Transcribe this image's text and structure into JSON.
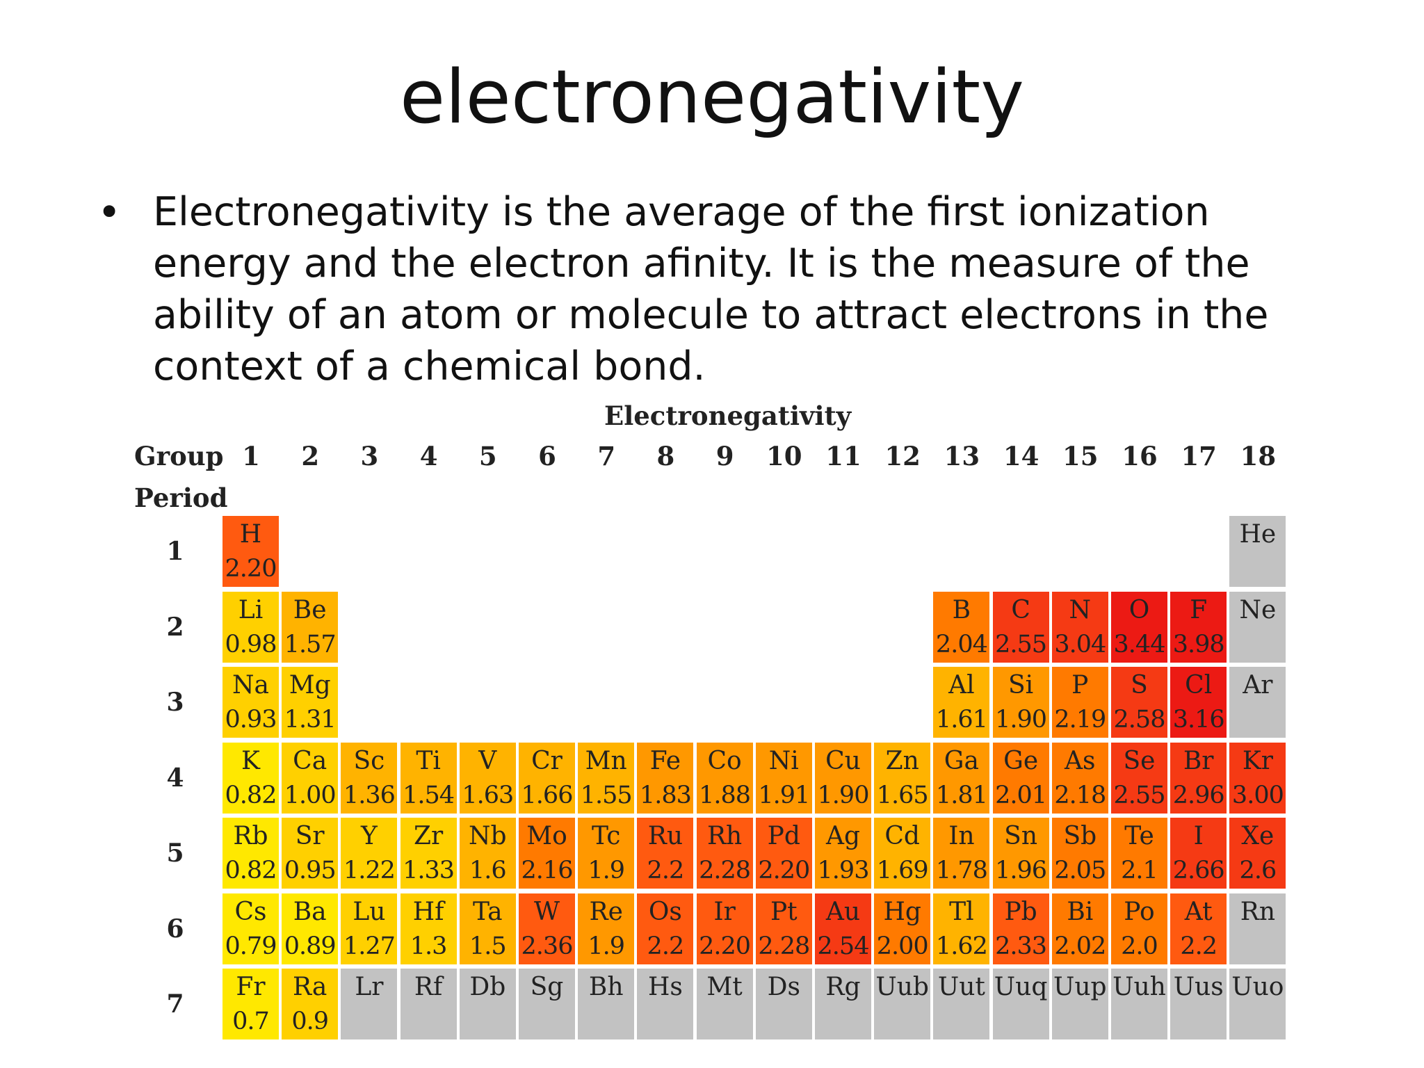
{
  "slide": {
    "title": "electronegativity",
    "bullet": "Electronegativity is the average of the first ionization energy and the electron afinity. It is the measure of the ability of an atom or molecule to attract electrons in the context of a chemical bond."
  },
  "table": {
    "caption": "Electronegativity",
    "group_label": "Group",
    "period_label": "Period",
    "groups": [
      "1",
      "2",
      "3",
      "4",
      "5",
      "6",
      "7",
      "8",
      "9",
      "10",
      "11",
      "12",
      "13",
      "14",
      "15",
      "16",
      "17",
      "18"
    ],
    "periods": [
      "1",
      "2",
      "3",
      "4",
      "5",
      "6",
      "7"
    ],
    "colors": {
      "none": "#c2c2c2",
      "scale": [
        "#ffe800",
        "#ffd000",
        "#ffb300",
        "#ff9800",
        "#ff7a00",
        "#ff5a10",
        "#f53a14",
        "#ec1a14"
      ]
    },
    "elements": [
      {
        "sym": "H",
        "en": "2.20",
        "p": 1,
        "g": 1
      },
      {
        "sym": "He",
        "en": "",
        "p": 1,
        "g": 18
      },
      {
        "sym": "Li",
        "en": "0.98",
        "p": 2,
        "g": 1
      },
      {
        "sym": "Be",
        "en": "1.57",
        "p": 2,
        "g": 2
      },
      {
        "sym": "B",
        "en": "2.04",
        "p": 2,
        "g": 13
      },
      {
        "sym": "C",
        "en": "2.55",
        "p": 2,
        "g": 14
      },
      {
        "sym": "N",
        "en": "3.04",
        "p": 2,
        "g": 15
      },
      {
        "sym": "O",
        "en": "3.44",
        "p": 2,
        "g": 16
      },
      {
        "sym": "F",
        "en": "3.98",
        "p": 2,
        "g": 17
      },
      {
        "sym": "Ne",
        "en": "",
        "p": 2,
        "g": 18
      },
      {
        "sym": "Na",
        "en": "0.93",
        "p": 3,
        "g": 1
      },
      {
        "sym": "Mg",
        "en": "1.31",
        "p": 3,
        "g": 2
      },
      {
        "sym": "Al",
        "en": "1.61",
        "p": 3,
        "g": 13
      },
      {
        "sym": "Si",
        "en": "1.90",
        "p": 3,
        "g": 14
      },
      {
        "sym": "P",
        "en": "2.19",
        "p": 3,
        "g": 15
      },
      {
        "sym": "S",
        "en": "2.58",
        "p": 3,
        "g": 16
      },
      {
        "sym": "Cl",
        "en": "3.16",
        "p": 3,
        "g": 17
      },
      {
        "sym": "Ar",
        "en": "",
        "p": 3,
        "g": 18
      },
      {
        "sym": "K",
        "en": "0.82",
        "p": 4,
        "g": 1
      },
      {
        "sym": "Ca",
        "en": "1.00",
        "p": 4,
        "g": 2
      },
      {
        "sym": "Sc",
        "en": "1.36",
        "p": 4,
        "g": 3
      },
      {
        "sym": "Ti",
        "en": "1.54",
        "p": 4,
        "g": 4
      },
      {
        "sym": "V",
        "en": "1.63",
        "p": 4,
        "g": 5
      },
      {
        "sym": "Cr",
        "en": "1.66",
        "p": 4,
        "g": 6
      },
      {
        "sym": "Mn",
        "en": "1.55",
        "p": 4,
        "g": 7
      },
      {
        "sym": "Fe",
        "en": "1.83",
        "p": 4,
        "g": 8
      },
      {
        "sym": "Co",
        "en": "1.88",
        "p": 4,
        "g": 9
      },
      {
        "sym": "Ni",
        "en": "1.91",
        "p": 4,
        "g": 10
      },
      {
        "sym": "Cu",
        "en": "1.90",
        "p": 4,
        "g": 11
      },
      {
        "sym": "Zn",
        "en": "1.65",
        "p": 4,
        "g": 12
      },
      {
        "sym": "Ga",
        "en": "1.81",
        "p": 4,
        "g": 13
      },
      {
        "sym": "Ge",
        "en": "2.01",
        "p": 4,
        "g": 14
      },
      {
        "sym": "As",
        "en": "2.18",
        "p": 4,
        "g": 15
      },
      {
        "sym": "Se",
        "en": "2.55",
        "p": 4,
        "g": 16
      },
      {
        "sym": "Br",
        "en": "2.96",
        "p": 4,
        "g": 17
      },
      {
        "sym": "Kr",
        "en": "3.00",
        "p": 4,
        "g": 18
      },
      {
        "sym": "Rb",
        "en": "0.82",
        "p": 5,
        "g": 1
      },
      {
        "sym": "Sr",
        "en": "0.95",
        "p": 5,
        "g": 2
      },
      {
        "sym": "Y",
        "en": "1.22",
        "p": 5,
        "g": 3
      },
      {
        "sym": "Zr",
        "en": "1.33",
        "p": 5,
        "g": 4
      },
      {
        "sym": "Nb",
        "en": "1.6",
        "p": 5,
        "g": 5
      },
      {
        "sym": "Mo",
        "en": "2.16",
        "p": 5,
        "g": 6
      },
      {
        "sym": "Tc",
        "en": "1.9",
        "p": 5,
        "g": 7
      },
      {
        "sym": "Ru",
        "en": "2.2",
        "p": 5,
        "g": 8
      },
      {
        "sym": "Rh",
        "en": "2.28",
        "p": 5,
        "g": 9
      },
      {
        "sym": "Pd",
        "en": "2.20",
        "p": 5,
        "g": 10
      },
      {
        "sym": "Ag",
        "en": "1.93",
        "p": 5,
        "g": 11
      },
      {
        "sym": "Cd",
        "en": "1.69",
        "p": 5,
        "g": 12
      },
      {
        "sym": "In",
        "en": "1.78",
        "p": 5,
        "g": 13
      },
      {
        "sym": "Sn",
        "en": "1.96",
        "p": 5,
        "g": 14
      },
      {
        "sym": "Sb",
        "en": "2.05",
        "p": 5,
        "g": 15
      },
      {
        "sym": "Te",
        "en": "2.1",
        "p": 5,
        "g": 16
      },
      {
        "sym": "I",
        "en": "2.66",
        "p": 5,
        "g": 17
      },
      {
        "sym": "Xe",
        "en": "2.6",
        "p": 5,
        "g": 18
      },
      {
        "sym": "Cs",
        "en": "0.79",
        "p": 6,
        "g": 1
      },
      {
        "sym": "Ba",
        "en": "0.89",
        "p": 6,
        "g": 2
      },
      {
        "sym": "Lu",
        "en": "1.27",
        "p": 6,
        "g": 3
      },
      {
        "sym": "Hf",
        "en": "1.3",
        "p": 6,
        "g": 4
      },
      {
        "sym": "Ta",
        "en": "1.5",
        "p": 6,
        "g": 5
      },
      {
        "sym": "W",
        "en": "2.36",
        "p": 6,
        "g": 6
      },
      {
        "sym": "Re",
        "en": "1.9",
        "p": 6,
        "g": 7
      },
      {
        "sym": "Os",
        "en": "2.2",
        "p": 6,
        "g": 8
      },
      {
        "sym": "Ir",
        "en": "2.20",
        "p": 6,
        "g": 9
      },
      {
        "sym": "Pt",
        "en": "2.28",
        "p": 6,
        "g": 10
      },
      {
        "sym": "Au",
        "en": "2.54",
        "p": 6,
        "g": 11
      },
      {
        "sym": "Hg",
        "en": "2.00",
        "p": 6,
        "g": 12
      },
      {
        "sym": "Tl",
        "en": "1.62",
        "p": 6,
        "g": 13
      },
      {
        "sym": "Pb",
        "en": "2.33",
        "p": 6,
        "g": 14
      },
      {
        "sym": "Bi",
        "en": "2.02",
        "p": 6,
        "g": 15
      },
      {
        "sym": "Po",
        "en": "2.0",
        "p": 6,
        "g": 16
      },
      {
        "sym": "At",
        "en": "2.2",
        "p": 6,
        "g": 17
      },
      {
        "sym": "Rn",
        "en": "",
        "p": 6,
        "g": 18
      },
      {
        "sym": "Fr",
        "en": "0.7",
        "p": 7,
        "g": 1
      },
      {
        "sym": "Ra",
        "en": "0.9",
        "p": 7,
        "g": 2
      },
      {
        "sym": "Lr",
        "en": "",
        "p": 7,
        "g": 3
      },
      {
        "sym": "Rf",
        "en": "",
        "p": 7,
        "g": 4
      },
      {
        "sym": "Db",
        "en": "",
        "p": 7,
        "g": 5
      },
      {
        "sym": "Sg",
        "en": "",
        "p": 7,
        "g": 6
      },
      {
        "sym": "Bh",
        "en": "",
        "p": 7,
        "g": 7
      },
      {
        "sym": "Hs",
        "en": "",
        "p": 7,
        "g": 8
      },
      {
        "sym": "Mt",
        "en": "",
        "p": 7,
        "g": 9
      },
      {
        "sym": "Ds",
        "en": "",
        "p": 7,
        "g": 10
      },
      {
        "sym": "Rg",
        "en": "",
        "p": 7,
        "g": 11
      },
      {
        "sym": "Uub",
        "en": "",
        "p": 7,
        "g": 12
      },
      {
        "sym": "Uut",
        "en": "",
        "p": 7,
        "g": 13
      },
      {
        "sym": "Uuq",
        "en": "",
        "p": 7,
        "g": 14
      },
      {
        "sym": "Uup",
        "en": "",
        "p": 7,
        "g": 15
      },
      {
        "sym": "Uuh",
        "en": "",
        "p": 7,
        "g": 16
      },
      {
        "sym": "Uus",
        "en": "",
        "p": 7,
        "g": 17
      },
      {
        "sym": "Uuo",
        "en": "",
        "p": 7,
        "g": 18
      }
    ]
  }
}
